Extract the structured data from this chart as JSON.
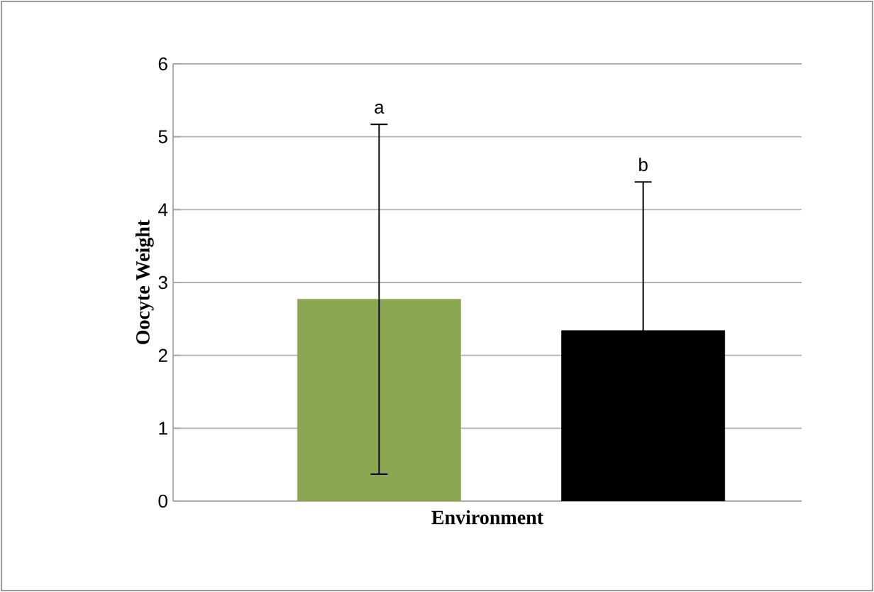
{
  "chart_data": {
    "type": "bar",
    "xlabel": "Environment",
    "ylabel": "Oocyte Weight",
    "categories": [
      null,
      null
    ],
    "values": [
      2.77,
      2.34
    ],
    "colors": [
      "#8ba752",
      "#000000"
    ],
    "errors": [
      2.4,
      2.04
    ],
    "ylim": [
      0,
      6
    ],
    "yticks": [
      0,
      1,
      2,
      3,
      4,
      5,
      6
    ],
    "grid": "y",
    "tick_labels": "y",
    "annotations": [
      "a",
      "b"
    ]
  }
}
